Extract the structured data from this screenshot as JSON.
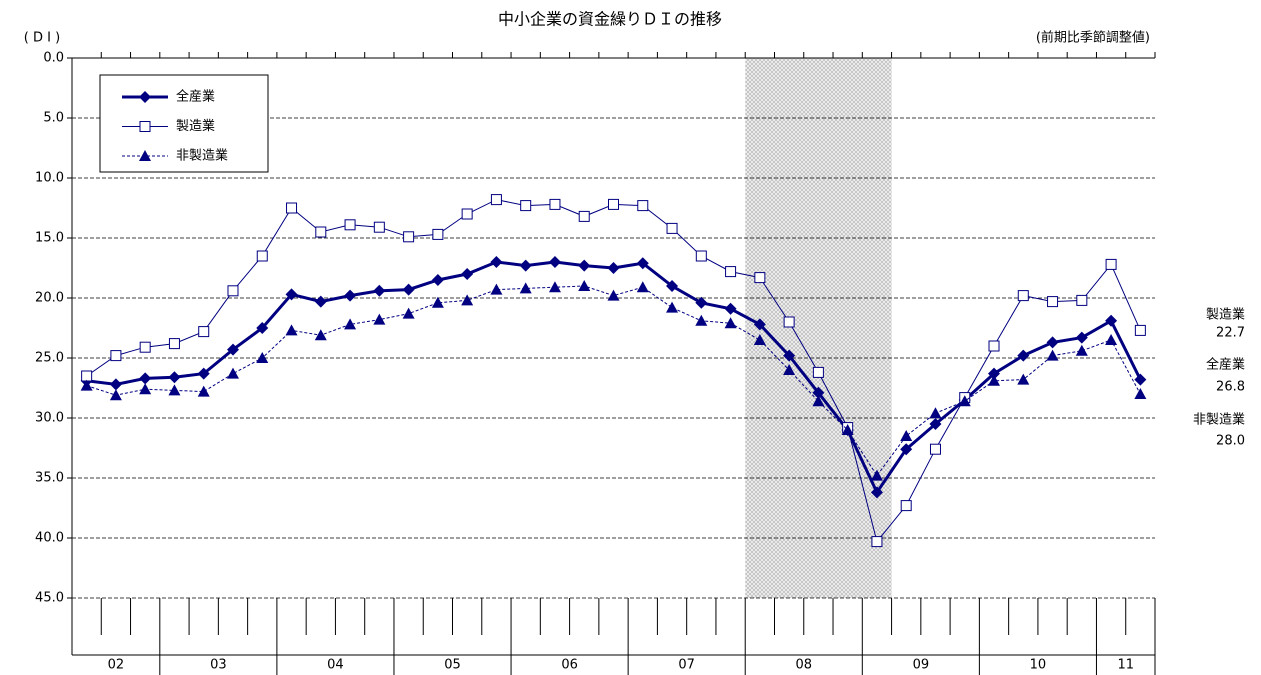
{
  "chart_data": {
    "type": "line",
    "title": "中小企業の資金繰りＤＩの推移",
    "y_label": "( D I )",
    "note": "(前期比季節調整値)",
    "y_inverted": true,
    "ylim": [
      0,
      45
    ],
    "yticks": [
      {
        "value": 0,
        "label": "0.0"
      },
      {
        "value": 5,
        "label": "5.0"
      },
      {
        "value": 10,
        "label": "10.0"
      },
      {
        "value": 15,
        "label": "15.0"
      },
      {
        "value": 20,
        "label": "20.0"
      },
      {
        "value": 25,
        "label": "25.0"
      },
      {
        "value": 30,
        "label": "30.0"
      },
      {
        "value": 35,
        "label": "35.0"
      },
      {
        "value": 40,
        "label": "40.0"
      },
      {
        "value": 45,
        "label": "45.0"
      }
    ],
    "grid": true,
    "legend": "upper left",
    "categories": [
      "02",
      null,
      null,
      "03",
      null,
      null,
      null,
      "04",
      null,
      null,
      null,
      "05",
      null,
      null,
      null,
      "06",
      null,
      null,
      null,
      "07",
      null,
      null,
      null,
      "08",
      null,
      null,
      null,
      "09",
      null,
      null,
      null,
      "10",
      null,
      null,
      null,
      "11",
      null
    ],
    "series": [
      {
        "name": "全産業",
        "color": "#000080",
        "marker": "diamond",
        "dash": false,
        "line_width": 3,
        "end_label": "26.8",
        "values": [
          26.9,
          27.2,
          26.7,
          26.6,
          26.3,
          24.3,
          22.5,
          19.7,
          20.3,
          19.8,
          19.4,
          19.3,
          18.5,
          18.0,
          17.0,
          17.3,
          17.0,
          17.3,
          17.5,
          17.1,
          19.0,
          20.4,
          20.9,
          22.2,
          24.8,
          27.9,
          31.0,
          36.2,
          32.6,
          30.5,
          28.5,
          26.3,
          24.8,
          23.7,
          23.3,
          21.9,
          26.8
        ]
      },
      {
        "name": "製造業",
        "color": "#000080",
        "marker": "square",
        "dash": false,
        "line_width": 1,
        "end_label": "22.7",
        "values": [
          26.5,
          24.8,
          24.1,
          23.8,
          22.8,
          19.4,
          16.5,
          12.5,
          14.5,
          13.9,
          14.1,
          14.9,
          14.7,
          13.0,
          11.8,
          12.3,
          12.2,
          13.2,
          12.2,
          12.3,
          14.2,
          16.5,
          17.8,
          18.3,
          22.0,
          26.2,
          30.8,
          40.3,
          37.3,
          32.6,
          28.3,
          24.0,
          19.8,
          20.3,
          20.2,
          17.2,
          22.7
        ]
      },
      {
        "name": "非製造業",
        "color": "#000080",
        "marker": "triangle",
        "dash": true,
        "line_width": 1,
        "end_label": "28.0",
        "values": [
          27.3,
          28.1,
          27.6,
          27.7,
          27.8,
          26.3,
          25.0,
          22.7,
          23.1,
          22.2,
          21.8,
          21.3,
          20.4,
          20.2,
          19.3,
          19.2,
          19.1,
          19.0,
          19.8,
          19.1,
          20.8,
          21.9,
          22.1,
          23.5,
          26.0,
          28.6,
          31.0,
          34.8,
          31.5,
          29.6,
          28.6,
          26.9,
          26.8,
          24.8,
          24.4,
          23.5,
          28.0
        ]
      }
    ]
  }
}
